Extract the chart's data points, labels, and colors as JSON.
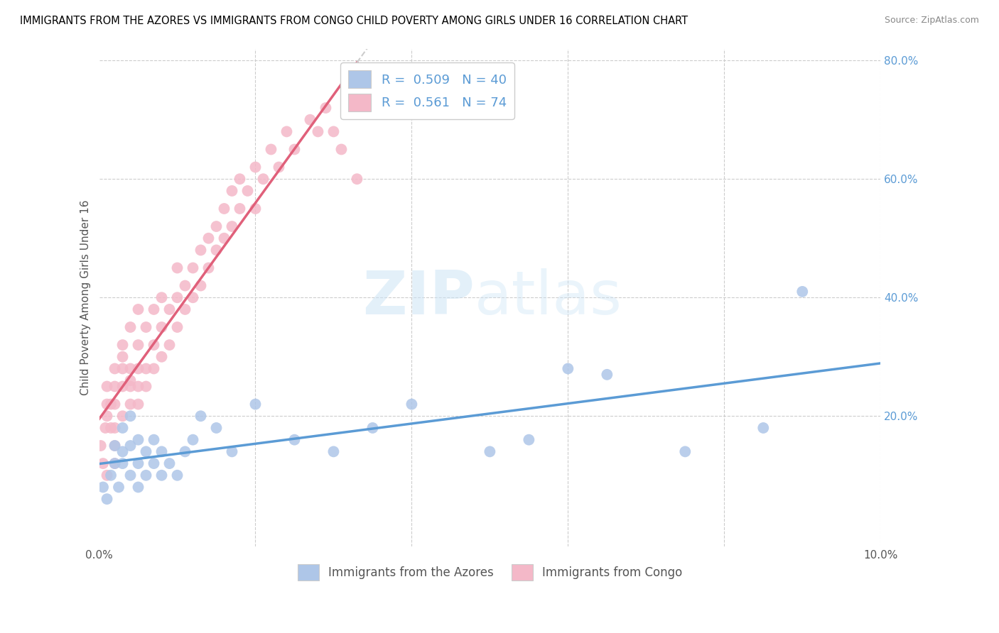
{
  "title": "IMMIGRANTS FROM THE AZORES VS IMMIGRANTS FROM CONGO CHILD POVERTY AMONG GIRLS UNDER 16 CORRELATION CHART",
  "source": "Source: ZipAtlas.com",
  "ylabel": "Child Poverty Among Girls Under 16",
  "legend_bottom": [
    "Immigrants from the Azores",
    "Immigrants from Congo"
  ],
  "azores_R": 0.509,
  "azores_N": 40,
  "congo_R": 0.561,
  "congo_N": 74,
  "xlim": [
    0.0,
    0.1
  ],
  "ylim": [
    -0.02,
    0.82
  ],
  "azores_color": "#aec6e8",
  "congo_color": "#f4b8c8",
  "azores_line_color": "#5b9bd5",
  "congo_line_color": "#e0607a",
  "watermark_zip": "ZIP",
  "watermark_atlas": "atlas",
  "azores_x": [
    0.0005,
    0.001,
    0.0015,
    0.002,
    0.002,
    0.0025,
    0.003,
    0.003,
    0.003,
    0.004,
    0.004,
    0.004,
    0.005,
    0.005,
    0.005,
    0.006,
    0.006,
    0.007,
    0.007,
    0.008,
    0.008,
    0.009,
    0.01,
    0.011,
    0.012,
    0.013,
    0.015,
    0.017,
    0.02,
    0.025,
    0.03,
    0.035,
    0.04,
    0.05,
    0.055,
    0.06,
    0.065,
    0.075,
    0.085,
    0.09
  ],
  "azores_y": [
    0.08,
    0.06,
    0.1,
    0.12,
    0.15,
    0.08,
    0.14,
    0.18,
    0.12,
    0.1,
    0.15,
    0.2,
    0.08,
    0.12,
    0.16,
    0.1,
    0.14,
    0.12,
    0.16,
    0.1,
    0.14,
    0.12,
    0.1,
    0.14,
    0.16,
    0.2,
    0.18,
    0.14,
    0.22,
    0.16,
    0.14,
    0.18,
    0.22,
    0.14,
    0.16,
    0.28,
    0.27,
    0.14,
    0.18,
    0.41
  ],
  "congo_x": [
    0.0002,
    0.0005,
    0.0008,
    0.001,
    0.001,
    0.001,
    0.0015,
    0.0015,
    0.002,
    0.002,
    0.002,
    0.002,
    0.002,
    0.003,
    0.003,
    0.003,
    0.003,
    0.004,
    0.004,
    0.004,
    0.004,
    0.005,
    0.005,
    0.005,
    0.005,
    0.005,
    0.006,
    0.006,
    0.006,
    0.007,
    0.007,
    0.007,
    0.008,
    0.008,
    0.008,
    0.009,
    0.009,
    0.01,
    0.01,
    0.01,
    0.011,
    0.011,
    0.012,
    0.012,
    0.013,
    0.013,
    0.014,
    0.014,
    0.015,
    0.015,
    0.016,
    0.016,
    0.017,
    0.017,
    0.018,
    0.018,
    0.019,
    0.02,
    0.02,
    0.021,
    0.022,
    0.023,
    0.024,
    0.025,
    0.027,
    0.028,
    0.029,
    0.03,
    0.031,
    0.033,
    0.001,
    0.002,
    0.003,
    0.004
  ],
  "congo_y": [
    0.15,
    0.12,
    0.18,
    0.2,
    0.22,
    0.25,
    0.18,
    0.22,
    0.15,
    0.18,
    0.22,
    0.25,
    0.28,
    0.2,
    0.25,
    0.28,
    0.32,
    0.22,
    0.25,
    0.28,
    0.35,
    0.22,
    0.25,
    0.28,
    0.32,
    0.38,
    0.25,
    0.28,
    0.35,
    0.28,
    0.32,
    0.38,
    0.3,
    0.35,
    0.4,
    0.32,
    0.38,
    0.35,
    0.4,
    0.45,
    0.38,
    0.42,
    0.4,
    0.45,
    0.42,
    0.48,
    0.45,
    0.5,
    0.48,
    0.52,
    0.5,
    0.55,
    0.52,
    0.58,
    0.55,
    0.6,
    0.58,
    0.55,
    0.62,
    0.6,
    0.65,
    0.62,
    0.68,
    0.65,
    0.7,
    0.68,
    0.72,
    0.68,
    0.65,
    0.6,
    0.1,
    0.12,
    0.3,
    0.26
  ]
}
